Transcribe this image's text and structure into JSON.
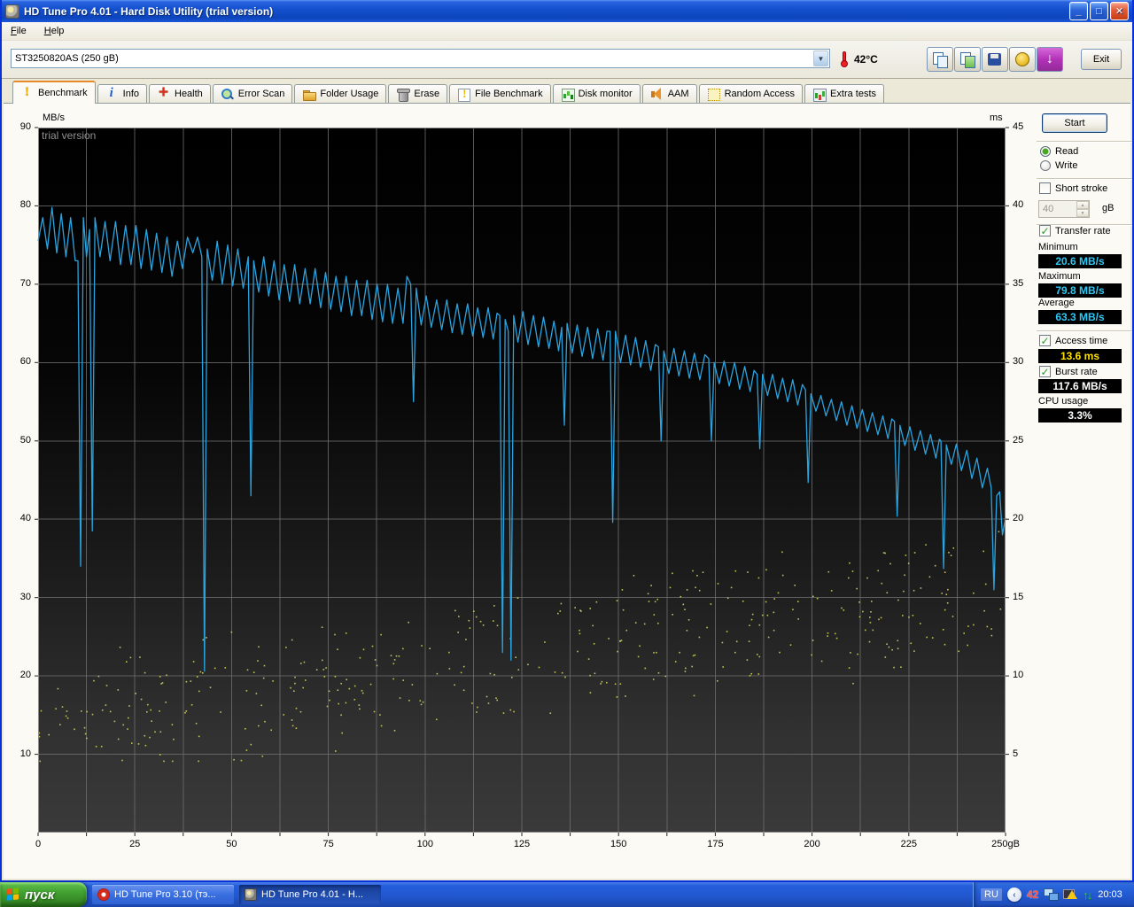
{
  "window": {
    "title": "HD Tune Pro 4.01 - Hard Disk Utility (trial version)",
    "menu": {
      "items": [
        {
          "label": "File"
        },
        {
          "label": "Help"
        }
      ]
    },
    "controls": {
      "minimize": "_",
      "maximize": "□",
      "close": "✕"
    }
  },
  "toolbar": {
    "device_select": "ST3250820AS (250 gB)",
    "temperature": "42°C",
    "download_glyph": "↓",
    "exit_label": "Exit"
  },
  "tabs": {
    "items": [
      {
        "label": "Benchmark"
      },
      {
        "label": "Info"
      },
      {
        "label": "Health"
      },
      {
        "label": "Error Scan"
      },
      {
        "label": "Folder Usage"
      },
      {
        "label": "Erase"
      },
      {
        "label": "File Benchmark"
      },
      {
        "label": "Disk monitor"
      },
      {
        "label": "AAM"
      },
      {
        "label": "Random Access"
      },
      {
        "label": "Extra tests"
      }
    ],
    "active": "Benchmark"
  },
  "panel": {
    "start_label": "Start",
    "read_label": "Read",
    "write_label": "Write",
    "short_stroke_label": "Short stroke",
    "capacity_value": "40",
    "capacity_unit": "gB",
    "transfer_rate_label": "Transfer rate",
    "minimum_label": "Minimum",
    "minimum_value": "20.6 MB/s",
    "maximum_label": "Maximum",
    "maximum_value": "79.8 MB/s",
    "average_label": "Average",
    "average_value": "63.3 MB/s",
    "access_time_label": "Access time",
    "access_time_value": "13.6 ms",
    "burst_rate_label": "Burst rate",
    "burst_rate_value": "117.6 MB/s",
    "cpu_usage_label": "CPU usage",
    "cpu_usage_value": "3.3%",
    "check_glyph": "✓"
  },
  "chart_data": {
    "type": "line",
    "title": "",
    "watermark": "trial version",
    "grid": true,
    "x_axis": {
      "min": 0,
      "max": 250,
      "tick_step": 25,
      "grid_step": 12.5,
      "tick_labels": [
        "0",
        "25",
        "50",
        "75",
        "100",
        "125",
        "150",
        "175",
        "200",
        "225",
        "250gB"
      ]
    },
    "y_left": {
      "label": "MB/s",
      "min": 0,
      "max": 90,
      "tick_step": 10,
      "ticks": [
        90,
        80,
        70,
        60,
        50,
        40,
        30,
        20,
        10
      ]
    },
    "y_right": {
      "label": "ms",
      "min": 0,
      "max": 45,
      "tick_step": 5,
      "ticks": [
        45,
        40,
        35,
        30,
        25,
        20,
        15,
        10,
        5
      ]
    },
    "series": [
      {
        "name": "transfer-rate",
        "axis": "left",
        "color": "#2aa4e0",
        "type": "line",
        "points": [
          [
            0,
            75.5
          ],
          [
            1.2,
            78.5
          ],
          [
            2.4,
            74.5
          ],
          [
            3.6,
            79.8
          ],
          [
            4.8,
            74
          ],
          [
            6,
            79
          ],
          [
            7.2,
            73.5
          ],
          [
            8.4,
            78.5
          ],
          [
            9.6,
            73
          ],
          [
            10.3,
            73
          ],
          [
            11,
            34
          ],
          [
            11.7,
            78.5
          ],
          [
            12.5,
            73.5
          ],
          [
            13.3,
            77
          ],
          [
            14,
            38.5
          ],
          [
            14.7,
            78.5
          ],
          [
            16,
            73.5
          ],
          [
            17.3,
            78
          ],
          [
            18.6,
            73
          ],
          [
            20,
            78
          ],
          [
            21.3,
            72.5
          ],
          [
            22.6,
            77.5
          ],
          [
            24,
            72.5
          ],
          [
            25.3,
            77.5
          ],
          [
            26.6,
            72
          ],
          [
            28,
            77
          ],
          [
            29.3,
            71.8
          ],
          [
            30.6,
            76.5
          ],
          [
            32,
            71.5
          ],
          [
            33.3,
            76
          ],
          [
            34.6,
            71
          ],
          [
            36,
            75.5
          ],
          [
            37.3,
            72
          ],
          [
            38.6,
            76
          ],
          [
            40,
            74
          ],
          [
            41.2,
            76
          ],
          [
            42.3,
            73.5
          ],
          [
            43,
            20.6
          ],
          [
            43.7,
            74.5
          ],
          [
            45,
            70.5
          ],
          [
            46.3,
            75.5
          ],
          [
            47.6,
            70
          ],
          [
            49,
            75
          ],
          [
            50.3,
            69.8
          ],
          [
            51.6,
            74.5
          ],
          [
            53,
            69.5
          ],
          [
            54.3,
            73.5
          ],
          [
            55,
            43
          ],
          [
            55.7,
            73
          ],
          [
            57,
            69
          ],
          [
            58.3,
            73.5
          ],
          [
            59.6,
            68.5
          ],
          [
            61,
            73
          ],
          [
            62.3,
            68
          ],
          [
            63.6,
            72.5
          ],
          [
            65,
            67.8
          ],
          [
            66.3,
            72.5
          ],
          [
            67.6,
            67.5
          ],
          [
            69,
            72
          ],
          [
            70.3,
            67.5
          ],
          [
            71.6,
            72
          ],
          [
            73,
            67
          ],
          [
            74.3,
            71.5
          ],
          [
            75.6,
            66.8
          ],
          [
            77,
            71
          ],
          [
            78.3,
            66.5
          ],
          [
            79.6,
            71
          ],
          [
            81,
            66
          ],
          [
            82.3,
            70.5
          ],
          [
            83.6,
            66
          ],
          [
            85,
            70.5
          ],
          [
            86.3,
            65.5
          ],
          [
            87.6,
            70
          ],
          [
            89,
            65.2
          ],
          [
            90.3,
            70
          ],
          [
            91.6,
            65
          ],
          [
            93,
            69.5
          ],
          [
            94.3,
            65
          ],
          [
            95.3,
            71
          ],
          [
            96.3,
            70
          ],
          [
            97,
            55
          ],
          [
            97.7,
            69.5
          ],
          [
            99,
            64.8
          ],
          [
            100.3,
            68.5
          ],
          [
            101.6,
            64.5
          ],
          [
            103,
            68
          ],
          [
            104.3,
            64.2
          ],
          [
            105.6,
            68
          ],
          [
            107,
            63.8
          ],
          [
            108.3,
            67.5
          ],
          [
            109.6,
            63.6
          ],
          [
            111,
            67.5
          ],
          [
            112.3,
            63.4
          ],
          [
            113.6,
            67
          ],
          [
            115,
            63.2
          ],
          [
            116.3,
            67
          ],
          [
            117.6,
            63
          ],
          [
            118.6,
            66.3
          ],
          [
            119.3,
            66
          ],
          [
            120,
            23
          ],
          [
            120.7,
            65.5
          ],
          [
            121.5,
            64
          ],
          [
            122.2,
            22
          ],
          [
            122.9,
            66
          ],
          [
            124,
            62.6
          ],
          [
            125.3,
            66.5
          ],
          [
            126.6,
            62.3
          ],
          [
            128,
            66
          ],
          [
            129.3,
            62
          ],
          [
            130.6,
            65.8
          ],
          [
            132,
            61.8
          ],
          [
            133.3,
            65.3
          ],
          [
            134.5,
            61.5
          ],
          [
            135.3,
            64.5
          ],
          [
            136,
            52
          ],
          [
            136.7,
            65
          ],
          [
            138,
            61.2
          ],
          [
            139.3,
            64.8
          ],
          [
            140.6,
            60.8
          ],
          [
            142,
            64.5
          ],
          [
            143.3,
            60.5
          ],
          [
            144.6,
            64.3
          ],
          [
            146,
            60.3
          ],
          [
            147,
            64
          ],
          [
            147.8,
            64
          ],
          [
            148.5,
            39.6
          ],
          [
            149.2,
            64
          ],
          [
            150.5,
            60
          ],
          [
            151.8,
            63.5
          ],
          [
            153.1,
            59.7
          ],
          [
            154.4,
            63.2
          ],
          [
            155.7,
            59.4
          ],
          [
            157,
            62.8
          ],
          [
            158.3,
            59
          ],
          [
            159.5,
            62.3
          ],
          [
            160.3,
            62
          ],
          [
            161,
            50
          ],
          [
            161.7,
            61.5
          ],
          [
            163,
            58.6
          ],
          [
            164.3,
            61.8
          ],
          [
            165.6,
            58.3
          ],
          [
            167,
            61.5
          ],
          [
            168.3,
            58
          ],
          [
            169.6,
            61.2
          ],
          [
            171,
            57.8
          ],
          [
            172.3,
            61
          ],
          [
            173.3,
            60.5
          ],
          [
            174,
            50
          ],
          [
            174.7,
            60
          ],
          [
            176,
            57.3
          ],
          [
            177.3,
            60.2
          ],
          [
            178.6,
            57
          ],
          [
            180,
            60
          ],
          [
            181.3,
            56.6
          ],
          [
            182.6,
            59.5
          ],
          [
            184,
            56.3
          ],
          [
            185,
            59
          ],
          [
            185.8,
            58.5
          ],
          [
            186.5,
            49
          ],
          [
            187.2,
            58.5
          ],
          [
            188.5,
            55.8
          ],
          [
            189.8,
            58.5
          ],
          [
            191.1,
            55.4
          ],
          [
            192.4,
            58
          ],
          [
            193.7,
            55
          ],
          [
            195,
            57.8
          ],
          [
            196.3,
            54.6
          ],
          [
            197.5,
            57.2
          ],
          [
            198.3,
            56.5
          ],
          [
            199,
            44.7
          ],
          [
            199.7,
            56
          ],
          [
            201,
            53.8
          ],
          [
            202.3,
            55.8
          ],
          [
            203.6,
            53.2
          ],
          [
            205,
            55.3
          ],
          [
            206.3,
            52.6
          ],
          [
            207.6,
            55
          ],
          [
            209,
            52
          ],
          [
            210.3,
            54.5
          ],
          [
            211.6,
            51.6
          ],
          [
            213,
            54
          ],
          [
            214.3,
            51.2
          ],
          [
            215.6,
            53.6
          ],
          [
            217,
            50.8
          ],
          [
            218.3,
            53.2
          ],
          [
            219.6,
            50.3
          ],
          [
            220.6,
            52.8
          ],
          [
            221.3,
            52.5
          ],
          [
            222,
            40.4
          ],
          [
            222.7,
            52
          ],
          [
            224,
            49.4
          ],
          [
            225.3,
            51.8
          ],
          [
            226.6,
            48.8
          ],
          [
            228,
            51.3
          ],
          [
            229.3,
            48.3
          ],
          [
            230.6,
            50.8
          ],
          [
            232,
            47.8
          ],
          [
            232.9,
            50.2
          ],
          [
            233.3,
            50
          ],
          [
            234,
            33.7
          ],
          [
            234.7,
            49.5
          ],
          [
            236,
            47
          ],
          [
            237.3,
            49.6
          ],
          [
            238.6,
            46.2
          ],
          [
            240,
            48.8
          ],
          [
            241.3,
            45.2
          ],
          [
            242.6,
            47.8
          ],
          [
            244,
            44
          ],
          [
            245.3,
            46.5
          ],
          [
            246.3,
            44
          ],
          [
            247,
            31
          ],
          [
            247.7,
            43
          ],
          [
            248.5,
            43.5
          ],
          [
            249.2,
            38
          ],
          [
            250,
            40.2
          ]
        ]
      },
      {
        "name": "access-time",
        "axis": "right",
        "color": "#d4d45e",
        "type": "scatter",
        "generator": {
          "seed": 987654321,
          "count": 430,
          "ms_base": 7.0,
          "ms_slope": 8.6,
          "ms_jitter": 3.6,
          "ms_min": 4.6,
          "ms_max": 20.8
        }
      }
    ]
  },
  "taskbar": {
    "start_label": "пуск",
    "tasks": [
      {
        "label": "HD Tune Pro 3.10 (тэ...",
        "active": false
      },
      {
        "label": "HD Tune Pro 4.01 - H...",
        "active": true
      }
    ],
    "tray": {
      "lang": "RU",
      "chevron": "‹",
      "temp": "42",
      "updown": "↑↓",
      "clock": "20:03"
    }
  }
}
